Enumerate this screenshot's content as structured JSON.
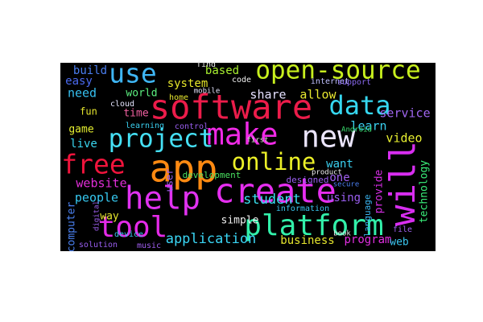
{
  "chart_data": {
    "type": "wordcloud",
    "background": "#000000",
    "words": [
      {
        "text": "software",
        "color": "#ec1c4a"
      },
      {
        "text": "open-source",
        "color": "#c8f01e"
      },
      {
        "text": "use",
        "color": "#3fb6f5"
      },
      {
        "text": "data",
        "color": "#36d7f0"
      },
      {
        "text": "make",
        "color": "#f02ae6"
      },
      {
        "text": "new",
        "color": "#ece6ff"
      },
      {
        "text": "project",
        "color": "#45e0f5"
      },
      {
        "text": "free",
        "color": "#f0143c"
      },
      {
        "text": "app",
        "color": "#ff8a12"
      },
      {
        "text": "online",
        "color": "#ecf028"
      },
      {
        "text": "create",
        "color": "#e62ef0"
      },
      {
        "text": "help",
        "color": "#e032f0"
      },
      {
        "text": "will",
        "color": "#d82ef0"
      },
      {
        "text": "platform",
        "color": "#32f0aa"
      },
      {
        "text": "tool",
        "color": "#e42ae8"
      },
      {
        "text": "application",
        "color": "#3ad6f5"
      },
      {
        "text": "student",
        "color": "#3ae0f0"
      },
      {
        "text": "website",
        "color": "#e02ed8"
      },
      {
        "text": "people",
        "color": "#36c8f0"
      },
      {
        "text": "video",
        "color": "#e8f030"
      },
      {
        "text": "learn",
        "color": "#3ad0f0"
      },
      {
        "text": "service",
        "color": "#a066f0"
      },
      {
        "text": "allow",
        "color": "#e8e830"
      },
      {
        "text": "share",
        "color": "#e6e0ff"
      },
      {
        "text": "world",
        "color": "#5cf080"
      },
      {
        "text": "time",
        "color": "#f060a0"
      },
      {
        "text": "live",
        "color": "#3ad6f0"
      },
      {
        "text": "game",
        "color": "#e6f030"
      },
      {
        "text": "need",
        "color": "#36c0f0"
      },
      {
        "text": "build",
        "color": "#4a7ef0"
      },
      {
        "text": "easy",
        "color": "#4a6af0"
      },
      {
        "text": "system",
        "color": "#e6e62a"
      },
      {
        "text": "based",
        "color": "#a8f030"
      },
      {
        "text": "internet",
        "color": "#c0c0ff"
      },
      {
        "text": "support",
        "color": "#8a6af0"
      },
      {
        "text": "technology",
        "color": "#3af07a"
      },
      {
        "text": "provide",
        "color": "#d82ee6"
      },
      {
        "text": "language",
        "color": "#3ab4f0"
      },
      {
        "text": "business",
        "color": "#e6e62e"
      },
      {
        "text": "program",
        "color": "#e02ee0"
      },
      {
        "text": "web",
        "color": "#3ac6f0"
      },
      {
        "text": "using",
        "color": "#9a5ef0"
      },
      {
        "text": "one",
        "color": "#a060f0"
      },
      {
        "text": "want",
        "color": "#3ad0f0"
      },
      {
        "text": "simple",
        "color": "#f0f0f0"
      },
      {
        "text": "way",
        "color": "#e6e62e"
      },
      {
        "text": "computer",
        "color": "#4a80f0"
      },
      {
        "text": "solution",
        "color": "#9a5ef0"
      },
      {
        "text": "music",
        "color": "#a05ef0"
      },
      {
        "text": "development",
        "color": "#4ae060"
      },
      {
        "text": "designed",
        "color": "#9a5ef0"
      },
      {
        "text": "information",
        "color": "#3ac6f0"
      },
      {
        "text": "learning",
        "color": "#3ad0f0"
      },
      {
        "text": "cloud",
        "color": "#e6e6ff"
      },
      {
        "text": "code",
        "color": "#f0f0f0"
      },
      {
        "text": "home",
        "color": "#e6e62e"
      },
      {
        "text": "Android",
        "color": "#3ae070"
      },
      {
        "text": "fun",
        "color": "#e6e62e"
      },
      {
        "text": "file",
        "color": "#a060f0"
      },
      {
        "text": "find",
        "color": "#e6e6e6"
      },
      {
        "text": "device",
        "color": "#3ac6f0"
      },
      {
        "text": "user",
        "color": "#a060f0"
      },
      {
        "text": "product",
        "color": "#f0f0f0"
      },
      {
        "text": "first",
        "color": "#e6e6e6"
      },
      {
        "text": "digital",
        "color": "#a060f0"
      },
      {
        "text": "mobile",
        "color": "#e6e6ff"
      },
      {
        "text": "control",
        "color": "#9a5ef0"
      },
      {
        "text": "secure",
        "color": "#4a7ef0"
      },
      {
        "text": "book",
        "color": "#e6e6e6"
      }
    ]
  }
}
